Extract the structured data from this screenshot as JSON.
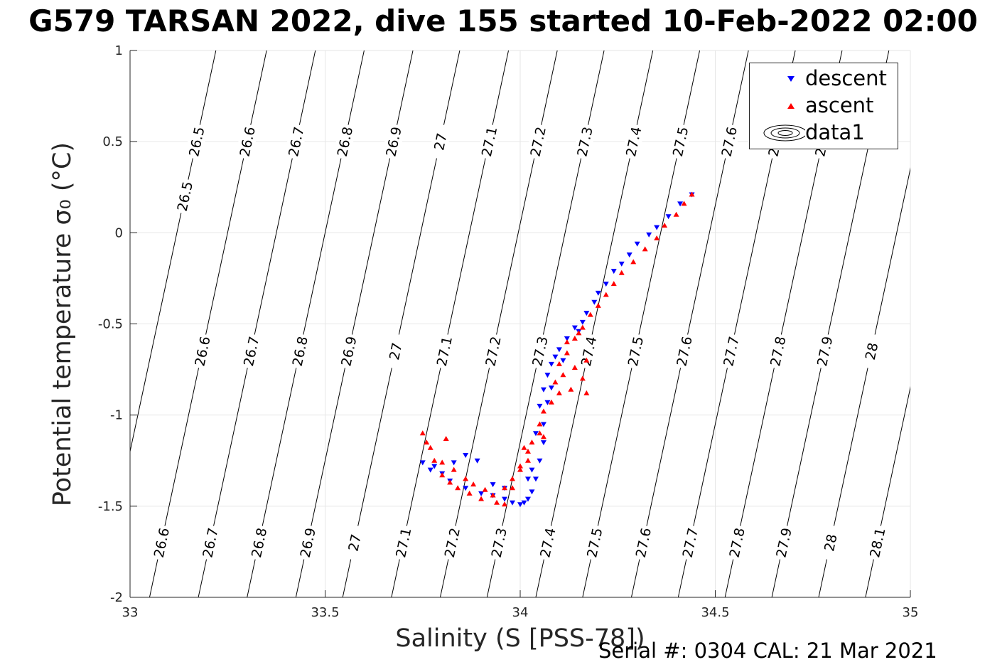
{
  "title": "G579 TARSAN 2022, dive 155 started 10-Feb-2022 02:00",
  "footer": {
    "serial": "Serial #: 0304  CAL: 21 Mar 2021"
  },
  "colors": {
    "descent": "#0000ff",
    "ascent": "#ff0000",
    "grid": "#e6e6e6",
    "contour": "#000000",
    "axis": "#262626"
  },
  "chart_data": {
    "type": "scatter",
    "xlabel": "Salinity (S [PSS-78])",
    "ylabel": "Potential temperature σ₀ (°C)",
    "xlim": [
      33,
      35
    ],
    "ylim": [
      -2,
      1
    ],
    "xticks": [
      33,
      33.5,
      34,
      34.5,
      35
    ],
    "xtick_labels": [
      "33",
      "33.5",
      "34",
      "34.5",
      "35"
    ],
    "yticks": [
      -2,
      -1.5,
      -1,
      -0.5,
      0,
      0.5,
      1
    ],
    "ytick_labels": [
      "-2",
      "-1.5",
      "-1",
      "-0.5",
      "0",
      "0.5",
      "1"
    ],
    "grid": true,
    "legend": {
      "placement": "top-right",
      "entries": [
        {
          "label": "descent",
          "marker": "triangle-down",
          "color": "#0000ff"
        },
        {
          "label": "ascent",
          "marker": "triangle-up",
          "color": "#ff0000"
        },
        {
          "label": "data1",
          "marker": "contour"
        }
      ]
    },
    "isopycnals": {
      "levels": [
        26.5,
        26.6,
        26.7,
        26.8,
        26.9,
        27.0,
        27.1,
        27.2,
        27.3,
        27.4,
        27.5,
        27.6,
        27.7,
        27.8,
        27.9,
        28.0,
        28.1
      ],
      "labels": [
        "26.5",
        "26.6",
        "26.7",
        "26.8",
        "26.9",
        "27",
        "27.1",
        "27.2",
        "27.3",
        "27.4",
        "27.5",
        "27.6",
        "27.7",
        "27.8",
        "27.9",
        "28",
        "28.1"
      ],
      "salinity_at_temp_minus2": [
        32.92,
        33.05,
        33.175,
        33.3,
        33.425,
        33.545,
        33.67,
        33.795,
        33.915,
        34.04,
        34.16,
        34.285,
        34.405,
        34.525,
        34.645,
        34.765,
        34.885
      ],
      "salinity_per_degree": 0.1,
      "label_temps": [
        [
          0.2,
          0.5
        ],
        [
          -0.65,
          0.5,
          -1.7
        ],
        [
          -0.65,
          0.5,
          -1.7
        ],
        [
          -0.65,
          0.5,
          -1.7
        ],
        [
          -0.65,
          0.5,
          -1.7
        ],
        [
          -0.65,
          0.5,
          -1.7
        ],
        [
          -0.65,
          0.5,
          -1.7
        ],
        [
          -0.65,
          0.5,
          -1.7
        ],
        [
          -0.65,
          0.5,
          -1.7
        ],
        [
          -0.65,
          0.5,
          -1.7
        ],
        [
          -0.65,
          0.5,
          -1.7
        ],
        [
          -0.65,
          0.5,
          -1.7
        ],
        [
          -0.65,
          0.5,
          -1.7
        ],
        [
          -0.65,
          0.5,
          -1.7
        ],
        [
          -0.65,
          -1.7
        ],
        [
          -0.65,
          -1.7
        ],
        [
          -0.55,
          -1.7
        ]
      ]
    },
    "series": [
      {
        "name": "descent",
        "marker": "triangle-down",
        "color": "#0000ff",
        "points": [
          [
            34.44,
            0.21
          ],
          [
            34.41,
            0.16
          ],
          [
            34.38,
            0.09
          ],
          [
            34.35,
            0.03
          ],
          [
            34.33,
            -0.01
          ],
          [
            34.3,
            -0.06
          ],
          [
            34.28,
            -0.12
          ],
          [
            34.26,
            -0.17
          ],
          [
            34.24,
            -0.21
          ],
          [
            34.22,
            -0.28
          ],
          [
            34.2,
            -0.33
          ],
          [
            34.19,
            -0.38
          ],
          [
            34.17,
            -0.44
          ],
          [
            34.16,
            -0.49
          ],
          [
            34.14,
            -0.52
          ],
          [
            34.12,
            -0.58
          ],
          [
            34.1,
            -0.64
          ],
          [
            34.09,
            -0.68
          ],
          [
            34.08,
            -0.72
          ],
          [
            34.07,
            -0.78
          ],
          [
            34.06,
            -0.86
          ],
          [
            34.05,
            -0.95
          ],
          [
            34.06,
            -1.05
          ],
          [
            34.06,
            -1.15
          ],
          [
            34.05,
            -1.25
          ],
          [
            34.04,
            -1.35
          ],
          [
            34.03,
            -1.42
          ],
          [
            34.02,
            -1.46
          ],
          [
            34.01,
            -1.48
          ],
          [
            34.0,
            -1.49
          ],
          [
            33.98,
            -1.48
          ],
          [
            33.96,
            -1.46
          ],
          [
            33.93,
            -1.44
          ],
          [
            33.9,
            -1.43
          ],
          [
            33.86,
            -1.4
          ],
          [
            33.82,
            -1.36
          ],
          [
            33.8,
            -1.32
          ],
          [
            33.78,
            -1.28
          ],
          [
            33.75,
            -1.26
          ],
          [
            33.77,
            -1.3
          ],
          [
            33.83,
            -1.26
          ],
          [
            33.86,
            -1.22
          ],
          [
            33.89,
            -1.25
          ],
          [
            33.93,
            -1.38
          ],
          [
            33.96,
            -1.4
          ],
          [
            34.02,
            -1.35
          ],
          [
            34.03,
            -1.3
          ],
          [
            34.08,
            -0.85
          ],
          [
            34.11,
            -0.7
          ],
          [
            34.07,
            -0.93
          ],
          [
            34.04,
            -1.1
          ],
          [
            34.15,
            -0.54
          ]
        ]
      },
      {
        "name": "ascent",
        "marker": "triangle-up",
        "color": "#ff0000",
        "points": [
          [
            34.44,
            0.21
          ],
          [
            34.42,
            0.16
          ],
          [
            34.4,
            0.1
          ],
          [
            34.37,
            0.04
          ],
          [
            34.35,
            -0.03
          ],
          [
            34.32,
            -0.09
          ],
          [
            34.29,
            -0.16
          ],
          [
            34.26,
            -0.22
          ],
          [
            34.24,
            -0.28
          ],
          [
            34.22,
            -0.34
          ],
          [
            34.2,
            -0.4
          ],
          [
            34.18,
            -0.45
          ],
          [
            34.16,
            -0.52
          ],
          [
            34.14,
            -0.58
          ],
          [
            34.12,
            -0.66
          ],
          [
            34.1,
            -0.72
          ],
          [
            34.11,
            -0.78
          ],
          [
            34.14,
            -0.74
          ],
          [
            34.16,
            -0.8
          ],
          [
            34.17,
            -0.88
          ],
          [
            34.13,
            -0.86
          ],
          [
            34.1,
            -0.88
          ],
          [
            34.08,
            -0.93
          ],
          [
            34.06,
            -0.98
          ],
          [
            34.05,
            -1.05
          ],
          [
            34.06,
            -1.12
          ],
          [
            34.03,
            -1.15
          ],
          [
            34.01,
            -1.18
          ],
          [
            34.02,
            -1.25
          ],
          [
            34.0,
            -1.3
          ],
          [
            33.98,
            -1.35
          ],
          [
            33.96,
            -1.4
          ],
          [
            33.93,
            -1.44
          ],
          [
            33.9,
            -1.46
          ],
          [
            33.87,
            -1.43
          ],
          [
            33.84,
            -1.4
          ],
          [
            33.82,
            -1.37
          ],
          [
            33.8,
            -1.33
          ],
          [
            33.78,
            -1.25
          ],
          [
            33.76,
            -1.15
          ],
          [
            33.75,
            -1.1
          ],
          [
            33.77,
            -1.18
          ],
          [
            33.8,
            -1.26
          ],
          [
            33.83,
            -1.3
          ],
          [
            33.86,
            -1.35
          ],
          [
            33.88,
            -1.38
          ],
          [
            33.91,
            -1.41
          ],
          [
            33.94,
            -1.48
          ],
          [
            33.96,
            -1.49
          ],
          [
            33.98,
            -1.4
          ],
          [
            34.0,
            -1.28
          ],
          [
            34.02,
            -1.2
          ],
          [
            34.05,
            -1.1
          ],
          [
            34.09,
            -0.82
          ],
          [
            34.12,
            -0.6
          ],
          [
            34.15,
            -0.55
          ],
          [
            34.17,
            -0.7
          ],
          [
            33.81,
            -1.13
          ]
        ]
      }
    ]
  }
}
